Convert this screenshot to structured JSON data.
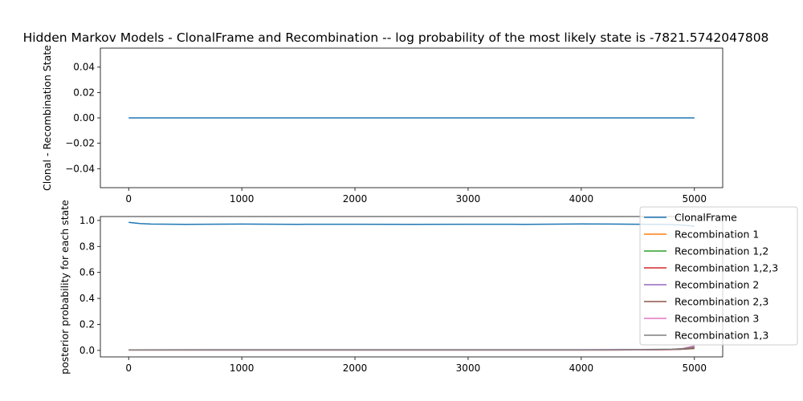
{
  "chart_data": [
    {
      "type": "line",
      "title": "Hidden Markov Models - ClonalFrame and Recombination -- log probability of the most likely state is  -7821.5742047808",
      "xlabel": "",
      "ylabel": "Clonal - Recombination State",
      "xlim": [
        -250,
        5250
      ],
      "ylim": [
        -0.055,
        0.055
      ],
      "xticks": [
        "0",
        "1000",
        "2000",
        "3000",
        "4000",
        "5000"
      ],
      "yticks": [
        "0.04",
        "0.02",
        "0.00",
        "−0.02",
        "−0.04"
      ],
      "grid": false,
      "series": [
        {
          "name": "",
          "color": "#1f77b4",
          "x": [
            0,
            5000
          ],
          "y": [
            0,
            0
          ]
        }
      ]
    },
    {
      "type": "line",
      "title": "",
      "xlabel": "",
      "ylabel": "posterior probability for each state",
      "xlim": [
        -250,
        5250
      ],
      "ylim": [
        -0.05,
        1.03
      ],
      "xticks": [
        "0",
        "1000",
        "2000",
        "3000",
        "4000",
        "5000"
      ],
      "yticks": [
        "1.0",
        "0.8",
        "0.6",
        "0.4",
        "0.2",
        "0.0"
      ],
      "grid": false,
      "legend": "right, outside",
      "series": [
        {
          "name": "ClonalFrame",
          "color": "#1f77b4",
          "x": [
            0,
            100,
            200,
            500,
            1000,
            1500,
            2000,
            2500,
            3000,
            3500,
            4000,
            4500,
            4750,
            4850,
            4950,
            5000
          ],
          "y": [
            0.985,
            0.976,
            0.972,
            0.97,
            0.972,
            0.97,
            0.971,
            0.97,
            0.971,
            0.97,
            0.973,
            0.971,
            0.97,
            0.967,
            0.96,
            0.955
          ]
        },
        {
          "name": "Recombination 1",
          "color": "#ff7f0e",
          "x": [
            0,
            1000,
            2000,
            3000,
            4000,
            4500,
            4800,
            4900,
            5000
          ],
          "y": [
            0.004,
            0.004,
            0.004,
            0.004,
            0.004,
            0.005,
            0.007,
            0.012,
            0.018
          ]
        },
        {
          "name": "Recombination 1,2",
          "color": "#2ca02c",
          "x": [
            0,
            1000,
            2000,
            3000,
            4000,
            4500,
            4800,
            4900,
            5000
          ],
          "y": [
            0.004,
            0.004,
            0.004,
            0.004,
            0.004,
            0.005,
            0.007,
            0.011,
            0.016
          ]
        },
        {
          "name": "Recombination 1,2,3",
          "color": "#d62728",
          "x": [
            0,
            1000,
            2000,
            3000,
            4000,
            4500,
            4800,
            4900,
            5000
          ],
          "y": [
            0.003,
            0.003,
            0.003,
            0.003,
            0.003,
            0.004,
            0.006,
            0.01,
            0.022
          ]
        },
        {
          "name": "Recombination 2",
          "color": "#9467bd",
          "x": [
            0,
            1000,
            2000,
            3000,
            4000,
            4500,
            4800,
            4900,
            5000
          ],
          "y": [
            0.004,
            0.005,
            0.005,
            0.005,
            0.005,
            0.006,
            0.008,
            0.012,
            0.02
          ]
        },
        {
          "name": "Recombination 2,3",
          "color": "#8c564b",
          "x": [
            0,
            1000,
            2000,
            3000,
            4000,
            4500,
            4800,
            4900,
            5000
          ],
          "y": [
            0.003,
            0.003,
            0.003,
            0.003,
            0.003,
            0.004,
            0.006,
            0.009,
            0.015
          ]
        },
        {
          "name": "Recombination 3",
          "color": "#e377c2",
          "x": [
            0,
            1000,
            2000,
            3000,
            4000,
            4500,
            4800,
            4900,
            5000
          ],
          "y": [
            0.004,
            0.004,
            0.004,
            0.004,
            0.004,
            0.005,
            0.008,
            0.015,
            0.035
          ]
        },
        {
          "name": "Recombination 1,3",
          "color": "#7f7f7f",
          "x": [
            0,
            1000,
            2000,
            3000,
            4000,
            4500,
            4800,
            4900,
            5000
          ],
          "y": [
            0.004,
            0.005,
            0.005,
            0.005,
            0.005,
            0.006,
            0.009,
            0.014,
            0.025
          ]
        }
      ]
    }
  ]
}
